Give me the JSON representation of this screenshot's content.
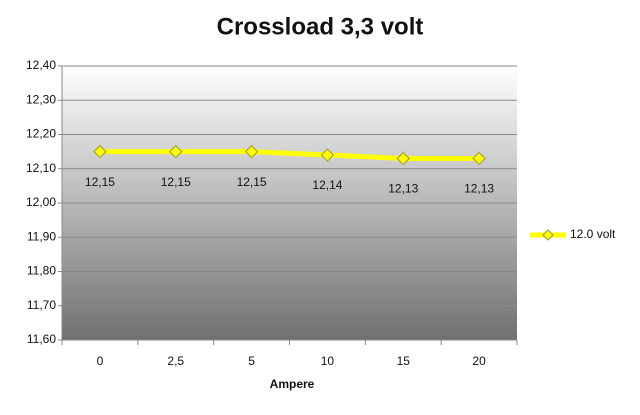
{
  "chart_data": {
    "type": "line",
    "title": "Crossload 3,3 volt",
    "x_label": "Ampere",
    "categories": [
      "0",
      "2,5",
      "5",
      "10",
      "15",
      "20"
    ],
    "series": [
      {
        "name": "12.0 volt",
        "color": "#ffff00",
        "values": [
          12.15,
          12.15,
          12.15,
          12.14,
          12.13,
          12.13
        ],
        "value_labels": [
          "12,15",
          "12,15",
          "12,15",
          "12,14",
          "12,13",
          "12,13"
        ]
      }
    ],
    "ylim": [
      11.6,
      12.4
    ],
    "yticks": [
      {
        "value": 11.6,
        "label": "11,60"
      },
      {
        "value": 11.7,
        "label": "11,70"
      },
      {
        "value": 11.8,
        "label": "11,80"
      },
      {
        "value": 11.9,
        "label": "11,90"
      },
      {
        "value": 12.0,
        "label": "12,00"
      },
      {
        "value": 12.1,
        "label": "12,10"
      },
      {
        "value": 12.2,
        "label": "12,20"
      },
      {
        "value": 12.3,
        "label": "12,30"
      },
      {
        "value": 12.4,
        "label": "12,40"
      }
    ],
    "grid": true,
    "legend": "right"
  }
}
